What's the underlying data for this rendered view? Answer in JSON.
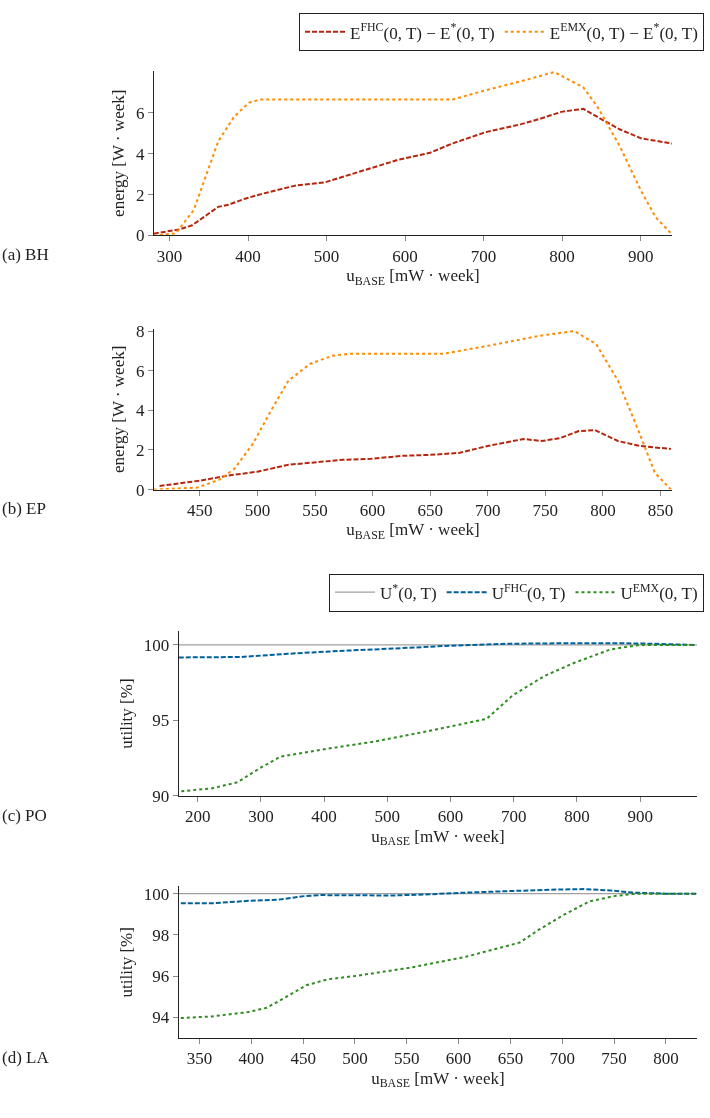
{
  "chart_data": [
    {
      "type": "line",
      "xlabel": "u$_{BASE}$ [mW · week]",
      "ylabel": "energy [W · week]",
      "annotations": [
        "(a) BH"
      ],
      "xlim": [
        280,
        940
      ],
      "xticks": [
        300,
        400,
        500,
        600,
        700,
        800,
        900
      ],
      "ylim": [
        0,
        8.05
      ],
      "yticks": [
        0,
        2,
        4,
        6
      ],
      "legend": "top",
      "marker": "none",
      "series": [
        {
          "name": "E$^{FHC}$(0, T) − E$^{*}$(0, T)",
          "color": "#b5260f",
          "line_style": "dashed",
          "x": [
            280,
            313,
            329,
            362,
            375,
            396,
            419,
            461,
            498,
            540,
            591,
            632,
            660,
            702,
            748,
            771,
            799,
            827,
            845,
            873,
            901,
            940
          ],
          "values": [
            0.09,
            0.3,
            0.5,
            1.4,
            1.5,
            1.8,
            2.05,
            2.45,
            2.6,
            3.1,
            3.7,
            4.05,
            4.5,
            5.05,
            5.45,
            5.7,
            6.05,
            6.2,
            5.8,
            5.2,
            4.75,
            4.5
          ]
        },
        {
          "name": "E$^{EMX}$(0, T) − E$^{*}$(0, T)",
          "color": "#ff8c00",
          "line_style": "dotted",
          "x": [
            280,
            308,
            331,
            362,
            382,
            401,
            415,
            660,
            702,
            748,
            790,
            827,
            845,
            873,
            901,
            919,
            940
          ],
          "values": [
            0,
            0.1,
            1.25,
            4.6,
            5.8,
            6.5,
            6.65,
            6.65,
            7.1,
            7.55,
            8.0,
            7.25,
            6.3,
            4.4,
            2.15,
            0.9,
            0.05
          ]
        }
      ]
    },
    {
      "type": "line",
      "xlabel": "u$_{BASE}$ [mW · week]",
      "ylabel": "energy [W · week]",
      "annotations": [
        "(b) EP"
      ],
      "xlim": [
        410,
        860
      ],
      "xticks": [
        450,
        500,
        550,
        600,
        650,
        700,
        750,
        800,
        850
      ],
      "ylim": [
        0,
        8.1
      ],
      "yticks": [
        0,
        2,
        4,
        6,
        8
      ],
      "marker": "none",
      "series": [
        {
          "color": "#b5260f",
          "line_style": "dashed",
          "x": [
            415,
            450,
            474,
            500,
            527,
            555,
            574,
            599,
            625,
            650,
            675,
            700,
            731,
            747,
            763,
            779,
            793,
            813,
            832,
            859
          ],
          "values": [
            0.18,
            0.45,
            0.7,
            0.9,
            1.25,
            1.4,
            1.5,
            1.55,
            1.7,
            1.75,
            1.85,
            2.2,
            2.55,
            2.45,
            2.6,
            2.95,
            3.0,
            2.45,
            2.2,
            2.05
          ]
        },
        {
          "color": "#ff8c00",
          "line_style": "dotted",
          "x": [
            410,
            448,
            467,
            480,
            496,
            511,
            527,
            546,
            565,
            580,
            661,
            700,
            744,
            775,
            794,
            813,
            832,
            845,
            859
          ],
          "values": [
            0,
            0.1,
            0.5,
            1.05,
            2.3,
            3.9,
            5.5,
            6.35,
            6.75,
            6.85,
            6.85,
            7.25,
            7.75,
            8.0,
            7.35,
            5.5,
            2.8,
            0.85,
            0
          ]
        }
      ]
    },
    {
      "type": "line",
      "xlabel": "u$_{BASE}$ [mW · week]",
      "ylabel": "utility [%]",
      "annotations": [
        "(c) PO"
      ],
      "xlim": [
        170,
        990
      ],
      "xticks": [
        200,
        300,
        400,
        500,
        600,
        700,
        800,
        900
      ],
      "ylim": [
        90,
        100.9
      ],
      "yticks": [
        90,
        95,
        100
      ],
      "legend": "top",
      "marker": "none",
      "series": [
        {
          "name": "U$^{*}$(0, T)",
          "color": "#a0a0a0",
          "line_style": "solid",
          "x": [
            170,
            990
          ],
          "values": [
            100,
            100
          ]
        },
        {
          "name": "U$^{FHC}$(0, T)",
          "color": "#00609a",
          "line_style": "dashed",
          "x": [
            170,
            268,
            337,
            423,
            509,
            600,
            681,
            795,
            900,
            988
          ],
          "values": [
            99.17,
            99.2,
            99.4,
            99.6,
            99.76,
            99.95,
            100.07,
            100.12,
            100.1,
            100
          ]
        },
        {
          "name": "U$^{EMX}$(0, T)",
          "color": "#2e8b20",
          "line_style": "dotted",
          "x": [
            174,
            223,
            263,
            297,
            331,
            394,
            480,
            566,
            657,
            698,
            749,
            795,
            853,
            899,
            988
          ],
          "values": [
            90.3,
            90.5,
            90.9,
            91.8,
            92.6,
            93.05,
            93.6,
            94.3,
            95.1,
            96.65,
            97.95,
            98.8,
            99.7,
            100,
            100
          ]
        }
      ]
    },
    {
      "type": "line",
      "xlabel": "u$_{BASE}$ [mW · week]",
      "ylabel": "utility [%]",
      "annotations": [
        "(d) LA"
      ],
      "xlim": [
        330,
        830
      ],
      "xticks": [
        350,
        400,
        450,
        500,
        550,
        600,
        650,
        700,
        750,
        800
      ],
      "ylim": [
        93,
        100.35
      ],
      "yticks": [
        94,
        96,
        98,
        100
      ],
      "marker": "none",
      "series": [
        {
          "color": "#a0a0a0",
          "line_style": "solid",
          "x": [
            330,
            830
          ],
          "values": [
            100,
            100
          ]
        },
        {
          "color": "#00609a",
          "line_style": "dashed",
          "x": [
            332,
            362,
            397,
            425,
            451,
            467,
            537,
            572,
            607,
            659,
            694,
            722,
            747,
            768,
            799,
            829
          ],
          "values": [
            99.53,
            99.53,
            99.65,
            99.7,
            99.88,
            99.93,
            99.91,
            99.97,
            100.05,
            100.14,
            100.2,
            100.22,
            100.15,
            100.05,
            100,
            100
          ]
        },
        {
          "color": "#2e8b20",
          "line_style": "dotted",
          "x": [
            332,
            362,
            397,
            415,
            432,
            453,
            474,
            502,
            554,
            607,
            659,
            677,
            701,
            726,
            750,
            771,
            829
          ],
          "values": [
            93.97,
            94.05,
            94.26,
            94.47,
            94.95,
            95.56,
            95.85,
            96.02,
            96.42,
            96.94,
            97.63,
            98.24,
            98.96,
            99.62,
            99.88,
            100,
            100
          ]
        }
      ]
    }
  ]
}
